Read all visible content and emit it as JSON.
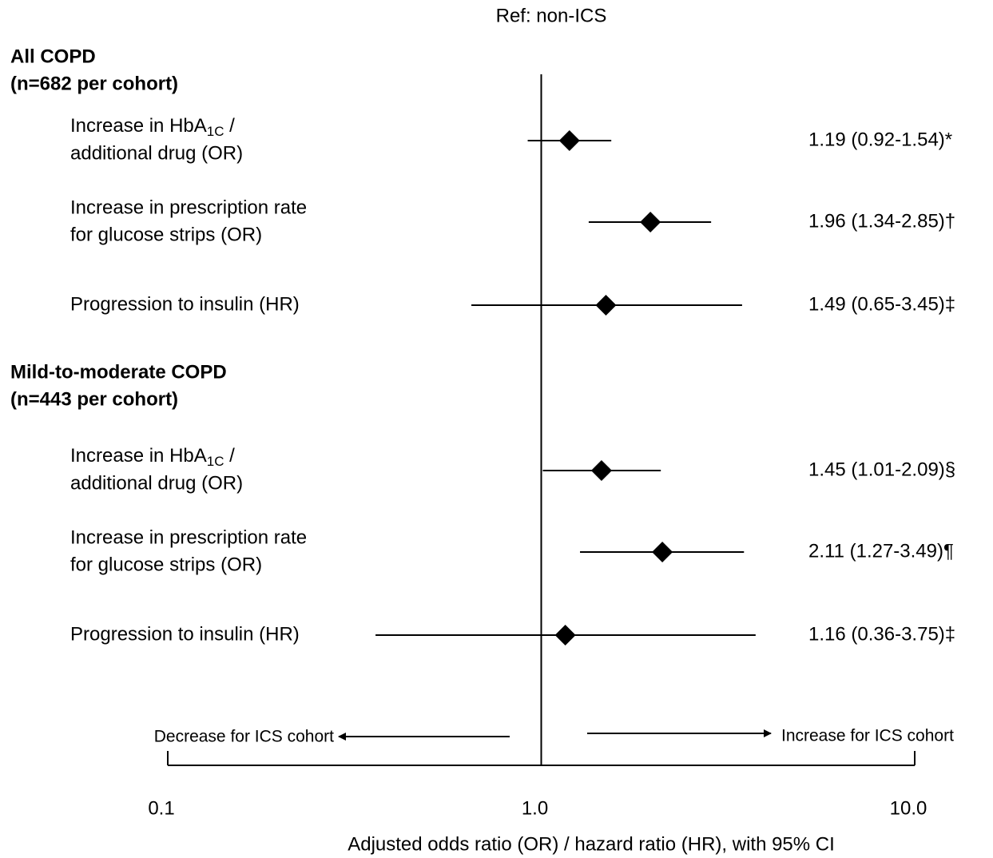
{
  "chart_data": {
    "type": "forest",
    "title": "Ref: non-ICS",
    "xlabel": "Adjusted odds ratio (OR) / hazard ratio (HR), with 95% CI",
    "xscale": "log",
    "xlim": [
      0.1,
      10
    ],
    "xticks": [
      0.1,
      {
        "value": 1,
        "label": "1.0"
      },
      {
        "value": 10,
        "label": "10.0"
      }
    ],
    "reference": 1,
    "color": "#000000",
    "annotations": {
      "left": "Decrease for ICS cohort",
      "right": "Increase for ICS cohort"
    },
    "groups": [
      {
        "title": [
          "All COPD",
          "(n=682 per cohort)"
        ],
        "rows": [
          {
            "label": [
              "Increase in HbA1C /",
              "additional drug (OR)"
            ],
            "value": 1.19,
            "ci": [
              0.92,
              1.54
            ],
            "value_label": "1.19 (0.92-1.54)*"
          },
          {
            "label": [
              "Increase in prescription rate",
              "for glucose strips (OR)"
            ],
            "value": 1.96,
            "ci": [
              1.34,
              2.85
            ],
            "value_label": "1.96 (1.34-2.85)†"
          },
          {
            "label": [
              "Progression to insulin (HR)"
            ],
            "value": 1.49,
            "ci": [
              0.65,
              3.45
            ],
            "value_label": "1.49 (0.65-3.45)‡"
          }
        ]
      },
      {
        "title": [
          "Mild-to-moderate COPD",
          "(n=443 per cohort)"
        ],
        "rows": [
          {
            "label": [
              "Increase in HbA1C /",
              "additional drug (OR)"
            ],
            "value": 1.45,
            "ci": [
              1.01,
              2.09
            ],
            "value_label": "1.45 (1.01-2.09)§"
          },
          {
            "label": [
              "Increase in prescription rate",
              "for glucose strips (OR)"
            ],
            "value": 2.11,
            "ci": [
              1.27,
              3.49
            ],
            "value_label": "2.11 (1.27-3.49)¶"
          },
          {
            "label": [
              "Progression to insulin (HR)"
            ],
            "value": 1.16,
            "ci": [
              0.36,
              3.75
            ],
            "value_label": "1.16 (0.36-3.75)‡"
          }
        ]
      }
    ]
  }
}
